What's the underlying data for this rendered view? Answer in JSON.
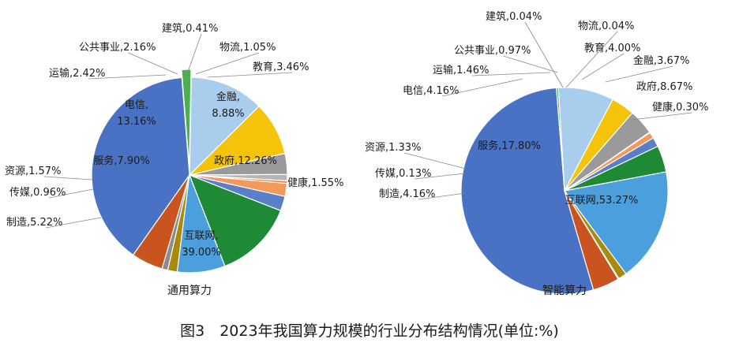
{
  "figure": {
    "caption": "图3　2023年我国算力规模的行业分布结构情况(单位:%)"
  },
  "chart_data": [
    {
      "type": "pie",
      "title": "通用算力",
      "slices": [
        {
          "name": "互联网",
          "value": 39.0,
          "label": "互联网,",
          "value_label": "39.00%",
          "color": "#4a72c4"
        },
        {
          "name": "制造",
          "value": 5.22,
          "label": "制造,5.22%",
          "color": "#c9541f"
        },
        {
          "name": "传媒",
          "value": 0.96,
          "label": "传媒,0.96%",
          "color": "#8c8c8c"
        },
        {
          "name": "资源",
          "value": 1.57,
          "label": "资源,1.57%",
          "color": "#a88a0c"
        },
        {
          "name": "服务",
          "value": 7.9,
          "label": "服务,7.90%",
          "color": "#4a9fdc"
        },
        {
          "name": "电信",
          "value": 13.16,
          "label": "电信,",
          "value_label": "13.16%",
          "color": "#1f8a36"
        },
        {
          "name": "运输",
          "value": 2.42,
          "label": "运输,2.42%",
          "color": "#5a7fc8"
        },
        {
          "name": "公共事业",
          "value": 2.16,
          "label": "公共事业,2.16%",
          "color": "#f29a5c"
        },
        {
          "name": "建筑",
          "value": 0.41,
          "label": "建筑,0.41%",
          "color": "#ef7f3a"
        },
        {
          "name": "物流",
          "value": 1.05,
          "label": "物流,1.05%",
          "color": "#b5b5b5"
        },
        {
          "name": "教育",
          "value": 3.46,
          "label": "教育,3.46%",
          "color": "#9a9a9a"
        },
        {
          "name": "金融",
          "value": 8.88,
          "label": "金融,",
          "value_label": "8.88%",
          "color": "#f5c30a"
        },
        {
          "name": "政府",
          "value": 12.26,
          "label": "政府,12.26%",
          "color": "#a9cdec"
        },
        {
          "name": "健康",
          "value": 1.55,
          "label": "健康,1.55%",
          "color": "#4caf50"
        }
      ]
    },
    {
      "type": "pie",
      "title": "智能算力",
      "slices": [
        {
          "name": "互联网",
          "value": 53.27,
          "label": "互联网,53.27%",
          "color": "#4a72c4"
        },
        {
          "name": "制造",
          "value": 4.16,
          "label": "制造,4.16%",
          "color": "#c9541f"
        },
        {
          "name": "传媒",
          "value": 0.13,
          "label": "传媒,0.13%",
          "color": "#8c8c8c"
        },
        {
          "name": "资源",
          "value": 1.33,
          "label": "资源,1.33%",
          "color": "#a88a0c"
        },
        {
          "name": "服务",
          "value": 17.8,
          "label": "服务,17.80%",
          "color": "#4a9fdc"
        },
        {
          "name": "电信",
          "value": 4.16,
          "label": "电信,4.16%",
          "color": "#1f8a36"
        },
        {
          "name": "运输",
          "value": 1.46,
          "label": "运输,1.46%",
          "color": "#5a7fc8"
        },
        {
          "name": "公共事业",
          "value": 0.97,
          "label": "公共事业,0.97%",
          "color": "#f29a5c"
        },
        {
          "name": "建筑",
          "value": 0.04,
          "label": "建筑,0.04%",
          "color": "#ef7f3a"
        },
        {
          "name": "物流",
          "value": 0.04,
          "label": "物流,0.04%",
          "color": "#b5b5b5"
        },
        {
          "name": "教育",
          "value": 4.0,
          "label": "教育,4.00%",
          "color": "#9a9a9a"
        },
        {
          "name": "金融",
          "value": 3.67,
          "label": "金融,3.67%",
          "color": "#f5c30a"
        },
        {
          "name": "政府",
          "value": 8.67,
          "label": "政府,8.67%",
          "color": "#a9cdec"
        },
        {
          "name": "健康",
          "value": 0.3,
          "label": "健康,0.30%",
          "color": "#4caf50"
        }
      ]
    }
  ]
}
